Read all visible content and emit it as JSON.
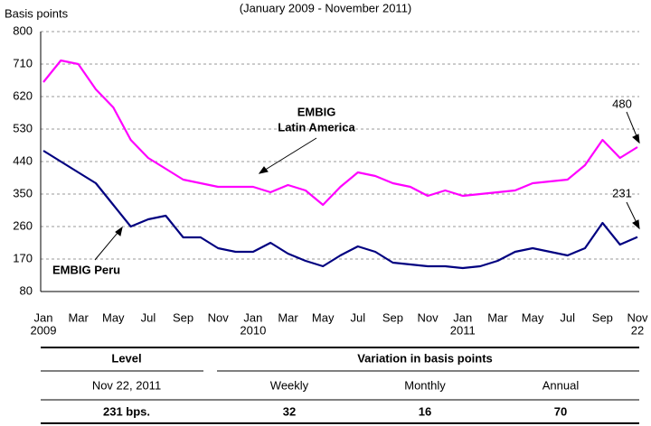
{
  "chart_data": {
    "type": "line",
    "title": "(January 2009 - November 2011)",
    "y_label": "Basis points",
    "categories": [
      "Jan",
      null,
      "Mar",
      null,
      "May",
      null,
      "Jul",
      null,
      "Sep",
      null,
      "Nov",
      null,
      "Jan",
      null,
      "Mar",
      null,
      "May",
      null,
      "Jul",
      null,
      "Sep",
      null,
      "Nov",
      null,
      "Jan",
      null,
      "Mar",
      null,
      "May",
      null,
      "Jul",
      null,
      "Sep",
      null,
      "Nov"
    ],
    "sublabels": [
      "2009",
      null,
      null,
      null,
      null,
      null,
      null,
      null,
      null,
      null,
      null,
      null,
      "2010",
      null,
      null,
      null,
      null,
      null,
      null,
      null,
      null,
      null,
      null,
      null,
      "2011",
      null,
      null,
      null,
      null,
      null,
      null,
      null,
      null,
      null,
      "22"
    ],
    "series": [
      {
        "name": "EMBIG Latin America",
        "color": "#ff00ff",
        "values": [
          660,
          720,
          710,
          640,
          590,
          500,
          450,
          420,
          390,
          380,
          370,
          370,
          370,
          355,
          375,
          360,
          320,
          370,
          410,
          400,
          380,
          370,
          345,
          360,
          345,
          350,
          355,
          360,
          380,
          385,
          390,
          430,
          500,
          450,
          480
        ]
      },
      {
        "name": "EMBIG Peru",
        "color": "#000080",
        "values": [
          470,
          440,
          410,
          380,
          320,
          260,
          280,
          290,
          230,
          230,
          200,
          190,
          190,
          215,
          185,
          165,
          150,
          180,
          205,
          190,
          160,
          155,
          150,
          150,
          145,
          150,
          165,
          190,
          200,
          190,
          180,
          200,
          270,
          210,
          231
        ]
      }
    ],
    "annotations": [
      "EMBIG",
      "Latin America",
      "EMBIG Peru",
      "480",
      "231"
    ],
    "ylim": [
      80,
      800
    ],
    "yticks": [
      80,
      170,
      260,
      350,
      440,
      530,
      620,
      710,
      800
    ],
    "grid": true
  },
  "table": {
    "header": [
      "Level",
      "Variation in basis points"
    ],
    "rows": [
      [
        "Nov 22, 2011",
        "Weekly",
        "Monthly",
        "Annual"
      ],
      [
        "231 bps.",
        32,
        16,
        70
      ]
    ]
  }
}
